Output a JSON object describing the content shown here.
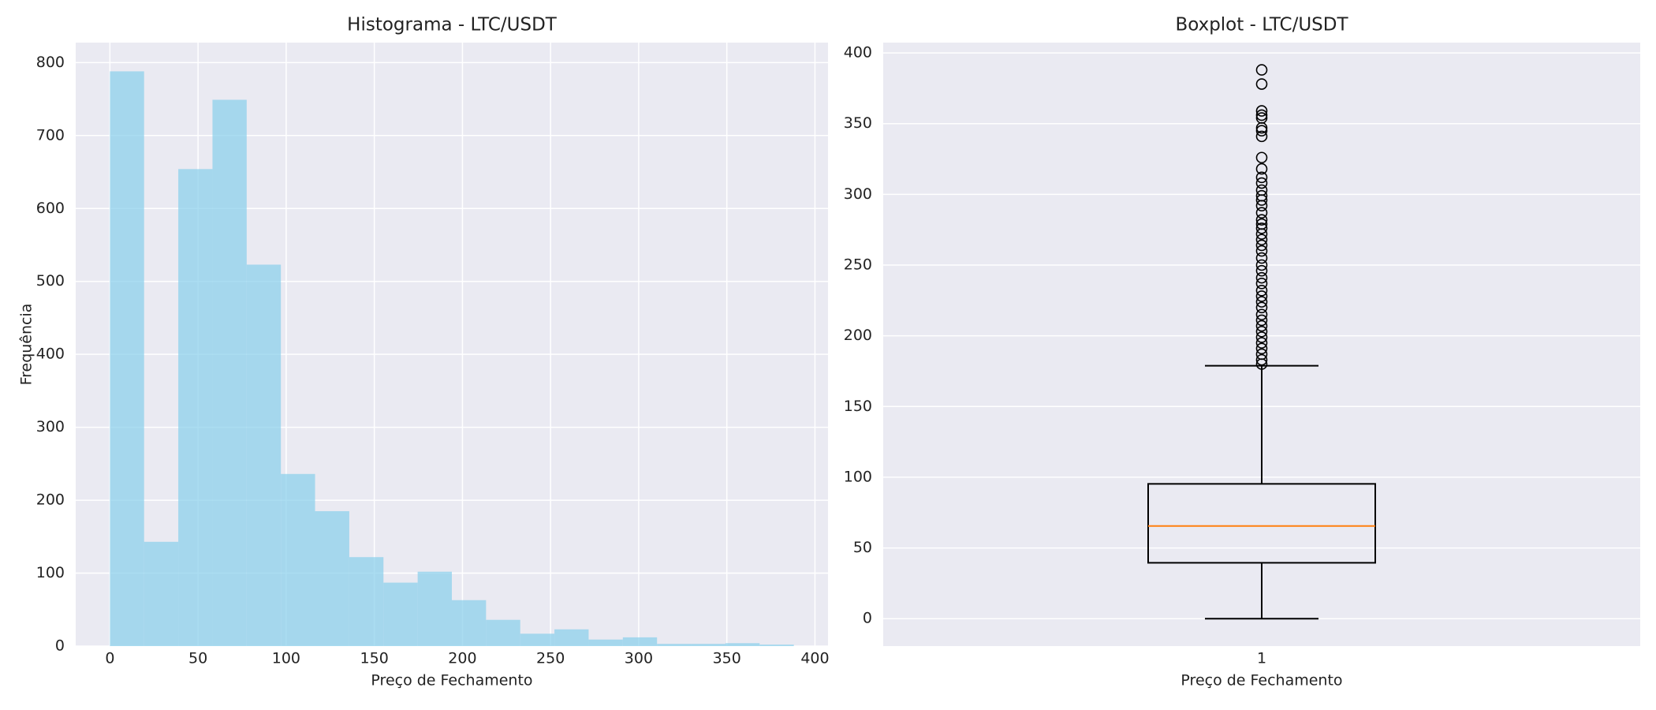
{
  "chart_data": [
    {
      "type": "histogram",
      "title": "Histograma - LTC/USDT",
      "xlabel": "Preço de Fechamento",
      "ylabel": "Frequência",
      "bins": [
        0,
        19.4,
        38.8,
        58.2,
        77.6,
        97,
        116.4,
        135.8,
        155.2,
        174.6,
        194,
        213.4,
        232.8,
        252.2,
        271.6,
        291,
        310.4,
        329.8,
        349.2,
        368.6,
        388
      ],
      "values": [
        788,
        143,
        654,
        749,
        523,
        236,
        185,
        122,
        87,
        102,
        63,
        36,
        17,
        23,
        9,
        12,
        3,
        3,
        4,
        2
      ],
      "color": "#87ceeb",
      "alpha": 0.7,
      "grid": true,
      "xlim": [
        -19.4,
        407.4
      ],
      "xticks": [
        0,
        50,
        100,
        150,
        200,
        250,
        300,
        350,
        400
      ],
      "ylim": [
        0,
        827.4
      ],
      "yticks": [
        0,
        100,
        200,
        300,
        400,
        500,
        600,
        700,
        800
      ]
    },
    {
      "type": "box",
      "title": "Boxplot - LTC/USDT",
      "xlabel": "Preço de Fechamento",
      "categories": [
        "1"
      ],
      "whislo": 0,
      "q1": 39.5,
      "median": 65.5,
      "q3": 95.3,
      "whishi": 178.8,
      "outliers": [
        388,
        378,
        359,
        356,
        354,
        347,
        345,
        341,
        326,
        318,
        312,
        308,
        303,
        299,
        296,
        292,
        287,
        282,
        279,
        276,
        272,
        268,
        264,
        260,
        255,
        250,
        246,
        241,
        237,
        232,
        228,
        224,
        220,
        215,
        211,
        207,
        203,
        199,
        195,
        191,
        187,
        183,
        180
      ],
      "median_color": "#ff7f0e",
      "grid": true,
      "xlim": [
        0.5,
        1.5
      ],
      "ylim": [
        -19.4,
        407.3
      ],
      "yticks": [
        0,
        50,
        100,
        150,
        200,
        250,
        300,
        350,
        400
      ]
    }
  ]
}
